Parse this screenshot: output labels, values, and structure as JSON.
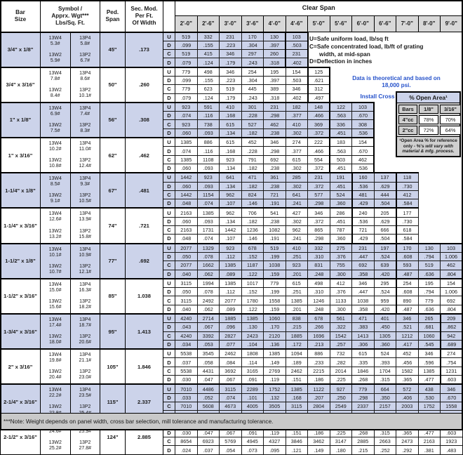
{
  "colors": {
    "accent_blue": "#2753cb",
    "row_shade": "#ccd3ea",
    "header_grey": "#d8d8d8",
    "footer_grey": "#c9c9c9"
  },
  "header": {
    "bar_size": "Bar\nSize",
    "symbol": "Symbol /\nApprx. Wgt***\nLbs/Sq. Ft.",
    "ped_span": "Ped.\nSpan",
    "sec_mod": "Sec. Mod.\nPer Ft.\nOf Width",
    "clear_span": "Clear Span"
  },
  "span_cols": [
    "2'-0\"",
    "2'-6\"",
    "3'-0\"",
    "3'-6\"",
    "4'-0\"",
    "4'-6\"",
    "5'-0\"",
    "5'-6\"",
    "6'-0\"",
    "6'-6\"",
    "7'-0\"",
    "8'-0\"",
    "9'-0\""
  ],
  "legend": {
    "u": "U=Safe uniform load, lb/sq ft",
    "c1": "C=Safe concentrated load, lb/ft of grating",
    "c2": "width, at mid-span",
    "d": "D=Deflection in inches"
  },
  "notes": {
    "line1": "Data is theoretical and based on",
    "line2": "18,000 psi.",
    "line3": "Install Cross Rods on Top."
  },
  "open_area": {
    "title": "% Open Area¹",
    "cols": [
      "Bars",
      "1/8\"",
      "3/16\""
    ],
    "rows": [
      [
        "4\"cc",
        "78%",
        "70%"
      ],
      [
        "2\"cc",
        "72%",
        "64%"
      ]
    ],
    "footnote_bold": "¹Open Area % for reference only - %'s",
    "footnote_italic": "will vary with material & mfg. process."
  },
  "footnote": "***Note: Weight depends on panel width, cross bar selection, mill tolerance and manufacturing tolerance.",
  "blocks": [
    {
      "bar_size": "3/4\" x 1/8\"",
      "symbols": [
        "13W4\n5.3#",
        "13P4\n5.8#",
        "13W2\n5.9#",
        "13P2\n6.7#"
      ],
      "ped_span": "45\"",
      "sec_mod": ".173",
      "shade": true,
      "heavy": [
        5,
        5
      ],
      "rows": [
        {
          "label": "U",
          "values": [
            "519",
            "332",
            "231",
            "170",
            "130",
            "103"
          ]
        },
        {
          "label": "D",
          "values": [
            ".099",
            ".155",
            ".223",
            ".304",
            ".397",
            ".503"
          ]
        },
        {
          "label": "C",
          "values": [
            "519",
            "415",
            "346",
            "297",
            "260",
            "231"
          ]
        },
        {
          "label": "D",
          "values": [
            ".079",
            ".124",
            ".179",
            ".243",
            ".318",
            ".402"
          ]
        }
      ]
    },
    {
      "bar_size": "3/4\" x 3/16\"",
      "symbols": [
        "13W4\n7.8#",
        "13P4\n8.6#",
        "13W2\n8.4#",
        "13P2\n10.1#"
      ],
      "ped_span": "50\"",
      "sec_mod": ".260",
      "shade": false,
      "heavy": [
        6,
        6
      ],
      "rows": [
        {
          "label": "U",
          "values": [
            "779",
            "498",
            "346",
            "254",
            "195",
            "154",
            "125"
          ]
        },
        {
          "label": "D",
          "values": [
            ".099",
            ".155",
            ".223",
            ".304",
            ".397",
            ".503",
            ".621"
          ]
        },
        {
          "label": "C",
          "values": [
            "779",
            "623",
            "519",
            "445",
            "389",
            "346",
            "312"
          ]
        },
        {
          "label": "D",
          "values": [
            ".079",
            ".124",
            ".179",
            ".243",
            ".318",
            ".402",
            ".497"
          ]
        }
      ]
    },
    {
      "bar_size": "1\" x 1/8\"",
      "symbols": [
        "13W4\n6.9#",
        "13P4\n7.4#",
        "13W2\n7.5#",
        "13P2\n8.3#"
      ],
      "ped_span": "56\"",
      "sec_mod": ".308",
      "shade": true,
      "heavy": [
        7,
        8
      ],
      "rows": [
        {
          "label": "U",
          "values": [
            "923",
            "591",
            "410",
            "301",
            "231",
            "182",
            "148",
            "122",
            "103"
          ]
        },
        {
          "label": "D",
          "values": [
            ".074",
            ".116",
            ".168",
            ".228",
            ".298",
            ".377",
            ".466",
            ".563",
            ".670"
          ]
        },
        {
          "label": "C",
          "values": [
            "923",
            "738",
            "615",
            "527",
            "462",
            "410",
            "369",
            "336",
            "308"
          ]
        },
        {
          "label": "D",
          "values": [
            ".060",
            ".093",
            ".134",
            ".182",
            ".238",
            ".302",
            ".372",
            ".451",
            ".536"
          ]
        }
      ]
    },
    {
      "bar_size": "1\" x 3/16\"",
      "symbols": [
        "13W4\n10.2#",
        "13P4\n11.0#",
        "13W2\n10.8#",
        "13P2\n12.4#"
      ],
      "ped_span": "62\"",
      "sec_mod": ".462",
      "shade": false,
      "heavy": [
        7,
        8
      ],
      "rows": [
        {
          "label": "U",
          "values": [
            "1385",
            "886",
            "615",
            "452",
            "346",
            "274",
            "222",
            "183",
            "154"
          ]
        },
        {
          "label": "D",
          "values": [
            ".074",
            ".116",
            ".168",
            ".228",
            ".298",
            ".377",
            ".466",
            ".563",
            ".670"
          ]
        },
        {
          "label": "C",
          "values": [
            "1385",
            "1108",
            "923",
            "791",
            "692",
            "615",
            "554",
            "503",
            "462"
          ]
        },
        {
          "label": "D",
          "values": [
            ".060",
            ".093",
            ".134",
            ".182",
            ".238",
            ".302",
            ".372",
            ".451",
            ".536"
          ]
        }
      ]
    },
    {
      "bar_size": "1-1/4\" x 1/8\"",
      "symbols": [
        "13W4\n8.5#",
        "13P4\n9.3#",
        "13W2\n9.1#",
        "13P2\n10.5#"
      ],
      "ped_span": "67\"",
      "sec_mod": ".481",
      "shade": true,
      "heavy": [
        8,
        9
      ],
      "rows": [
        {
          "label": "U",
          "values": [
            "1442",
            "923",
            "641",
            "471",
            "361",
            "285",
            "231",
            "191",
            "160",
            "137",
            "118"
          ]
        },
        {
          "label": "D",
          "values": [
            ".060",
            ".093",
            ".134",
            ".182",
            ".238",
            ".302",
            ".372",
            ".451",
            ".536",
            ".629",
            ".730"
          ]
        },
        {
          "label": "C",
          "values": [
            "1442",
            "1154",
            "962",
            "824",
            "721",
            "641",
            "577",
            "524",
            "481",
            "444",
            "412"
          ]
        },
        {
          "label": "D",
          "values": [
            ".048",
            ".074",
            ".107",
            ".146",
            ".191",
            ".241",
            ".298",
            ".360",
            ".429",
            ".504",
            ".584"
          ]
        }
      ]
    },
    {
      "bar_size": "1-1/4\" x 3/16\"",
      "symbols": [
        "13W4\n12.6#",
        "13P4\n13.9#",
        "13W2\n13.2#",
        "13P2\n15.8#"
      ],
      "ped_span": "74\"",
      "sec_mod": ".721",
      "shade": false,
      "heavy": [
        8,
        9
      ],
      "rows": [
        {
          "label": "U",
          "values": [
            "2163",
            "1385",
            "962",
            "706",
            "541",
            "427",
            "346",
            "286",
            "240",
            "205",
            "177"
          ]
        },
        {
          "label": "D",
          "values": [
            ".060",
            ".093",
            ".134",
            ".182",
            ".238",
            ".302",
            ".372",
            ".451",
            ".536",
            ".629",
            ".730"
          ]
        },
        {
          "label": "C",
          "values": [
            "2163",
            "1731",
            "1442",
            "1236",
            "1082",
            "962",
            "865",
            "787",
            "721",
            "666",
            "618"
          ]
        },
        {
          "label": "D",
          "values": [
            ".048",
            ".074",
            ".107",
            ".146",
            ".191",
            ".241",
            ".298",
            ".360",
            ".429",
            ".504",
            ".584"
          ]
        }
      ]
    },
    {
      "bar_size": "1-1/2\" x 1/8\"",
      "symbols": [
        "13W4\n10.1#",
        "13P4\n10.9#",
        "13W2\n10.7#",
        "13P2\n12.1#"
      ],
      "ped_span": "77\"",
      "sec_mod": ".692",
      "shade": true,
      "heavy": [
        10,
        12
      ],
      "rows": [
        {
          "label": "U",
          "values": [
            "2077",
            "1329",
            "923",
            "678",
            "519",
            "410",
            "332",
            "275",
            "231",
            "197",
            "170",
            "130",
            "103"
          ]
        },
        {
          "label": "D",
          "values": [
            ".050",
            ".078",
            ".112",
            ".152",
            ".199",
            ".251",
            ".310",
            ".376",
            ".447",
            ".524",
            ".608",
            ".794",
            "1.006"
          ]
        },
        {
          "label": "C",
          "values": [
            "2077",
            "1662",
            "1385",
            "1187",
            "1038",
            "923",
            "831",
            "755",
            "692",
            "639",
            "593",
            "519",
            "462"
          ]
        },
        {
          "label": "D",
          "values": [
            ".040",
            ".062",
            ".089",
            ".122",
            ".159",
            ".201",
            ".248",
            ".300",
            ".358",
            ".420",
            ".487",
            ".636",
            ".804"
          ]
        }
      ]
    },
    {
      "bar_size": "1-1/2\" x 3/16\"",
      "symbols": [
        "13W4\n15.0#",
        "13P4\n16.3#",
        "13W2\n15.6#",
        "13P2\n18.2#"
      ],
      "ped_span": "85\"",
      "sec_mod": "1.038",
      "shade": false,
      "heavy": [
        10,
        12
      ],
      "rows": [
        {
          "label": "U",
          "values": [
            "3115",
            "1994",
            "1385",
            "1017",
            "779",
            "615",
            "498",
            "412",
            "346",
            "295",
            "254",
            "195",
            "154"
          ]
        },
        {
          "label": "D",
          "values": [
            ".050",
            ".078",
            ".112",
            ".152",
            ".199",
            ".251",
            ".310",
            ".376",
            ".447",
            ".524",
            ".608",
            ".794",
            "1.006"
          ]
        },
        {
          "label": "C",
          "values": [
            "3115",
            "2492",
            "2077",
            "1780",
            "1558",
            "1385",
            "1246",
            "1133",
            "1038",
            "959",
            "890",
            "779",
            "692"
          ]
        },
        {
          "label": "D",
          "values": [
            ".040",
            ".062",
            ".089",
            ".122",
            ".159",
            ".201",
            ".248",
            ".300",
            ".358",
            ".420",
            ".487",
            ".636",
            ".804"
          ]
        }
      ]
    },
    {
      "bar_size": "1-3/4\" x 3/16\"",
      "symbols": [
        "13W4\n17.4#",
        "13P4\n18.7#",
        "13W2\n18.0#",
        "13P2\n20.6#"
      ],
      "ped_span": "95\"",
      "sec_mod": "1.413",
      "shade": true,
      "heavy": [
        12,
        12
      ],
      "rows": [
        {
          "label": "U",
          "values": [
            "4240",
            "2714",
            "1885",
            "1385",
            "1060",
            "838",
            "678",
            "561",
            "471",
            "401",
            "346",
            "265",
            "209"
          ]
        },
        {
          "label": "D",
          "values": [
            ".043",
            ".067",
            ".096",
            ".130",
            ".170",
            ".215",
            ".266",
            ".322",
            ".383",
            ".450",
            ".521",
            ".681",
            ".862"
          ]
        },
        {
          "label": "C",
          "values": [
            "4240",
            "3392",
            "2827",
            "2423",
            "2120",
            "1885",
            "1696",
            "1542",
            "1413",
            "1305",
            "1212",
            "1060",
            "942"
          ]
        },
        {
          "label": "D",
          "values": [
            ".034",
            ".053",
            ".077",
            ".104",
            ".136",
            ".172",
            ".213",
            ".257",
            ".306",
            ".360",
            ".417",
            ".545",
            ".689"
          ]
        }
      ]
    },
    {
      "bar_size": "2\" x 3/16\"",
      "symbols": [
        "13W4\n19.8#",
        "13P4\n21.1#",
        "13W2\n20.4#",
        "13P2\n23.0#"
      ],
      "ped_span": "105\"",
      "sec_mod": "1.846",
      "shade": false,
      "heavy": [
        12,
        12
      ],
      "rows": [
        {
          "label": "U",
          "values": [
            "5538",
            "3545",
            "2462",
            "1808",
            "1385",
            "1094",
            "886",
            "732",
            "615",
            "524",
            "452",
            "346",
            "274"
          ]
        },
        {
          "label": "D",
          "values": [
            ".037",
            ".058",
            ".084",
            ".114",
            ".149",
            ".189",
            ".233",
            ".282",
            ".335",
            ".393",
            ".456",
            ".596",
            ".754"
          ]
        },
        {
          "label": "C",
          "values": [
            "5538",
            "4431",
            "3692",
            "3165",
            "2769",
            "2462",
            "2215",
            "2014",
            "1846",
            "1704",
            "1582",
            "1385",
            "1231"
          ]
        },
        {
          "label": "D",
          "values": [
            ".030",
            ".047",
            ".067",
            ".091",
            ".119",
            ".151",
            ".186",
            ".225",
            ".268",
            ".315",
            ".365",
            ".477",
            ".603"
          ]
        }
      ]
    },
    {
      "bar_size": "2-1/4\" x 3/16\"",
      "symbols": [
        "13W4\n22.2#",
        "13P4\n23.5#",
        "13W2\n22.8#",
        "13P2\n25.4#"
      ],
      "ped_span": "115\"",
      "sec_mod": "2.337",
      "shade": true,
      "heavy": null,
      "rows": [
        {
          "label": "U",
          "values": [
            "7010",
            "4486",
            "3115",
            "2289",
            "1752",
            "1385",
            "1122",
            "927",
            "779",
            "664",
            "572",
            "438",
            "346"
          ]
        },
        {
          "label": "D",
          "values": [
            ".033",
            ".052",
            ".074",
            ".101",
            ".132",
            ".168",
            ".207",
            ".250",
            ".298",
            ".350",
            ".406",
            ".530",
            ".670"
          ]
        },
        {
          "label": "C",
          "values": [
            "7010",
            "5608",
            "4673",
            "4005",
            "3505",
            "3115",
            "2804",
            "2549",
            "2337",
            "2157",
            "2003",
            "1752",
            "1558"
          ]
        },
        {
          "label": "D",
          "values": [
            ".026",
            ".041",
            ".060",
            ".081",
            ".106",
            ".134",
            ".166",
            ".200",
            ".238",
            ".280",
            ".324",
            ".424",
            ".536"
          ]
        }
      ]
    },
    {
      "bar_size": "2-1/2\" x 3/16\"",
      "symbols": [
        "13W4\n24.6#",
        "13P4\n25.9#",
        "13W2\n25.2#",
        "13P2\n27.8#"
      ],
      "ped_span": "124\"",
      "sec_mod": "2.885",
      "shade": false,
      "heavy": null,
      "rows": [
        {
          "label": "U",
          "values": [
            "8654",
            "5538",
            "3846",
            "2826",
            "2163",
            "1709",
            "1385",
            "1144",
            "962",
            "819",
            "706",
            "541",
            "427"
          ]
        },
        {
          "label": "D",
          "values": [
            ".030",
            ".047",
            ".067",
            ".091",
            ".119",
            ".151",
            ".186",
            ".225",
            ".268",
            ".315",
            ".365",
            ".477",
            ".603"
          ]
        },
        {
          "label": "C",
          "values": [
            "8654",
            "6923",
            "5769",
            "4945",
            "4327",
            "3846",
            "3462",
            "3147",
            "2885",
            "2663",
            "2473",
            "2163",
            "1923"
          ]
        },
        {
          "label": "D",
          "values": [
            ".024",
            ".037",
            ".054",
            ".073",
            ".095",
            ".121",
            ".149",
            ".180",
            ".215",
            ".252",
            ".292",
            ".381",
            ".483"
          ]
        }
      ]
    }
  ]
}
